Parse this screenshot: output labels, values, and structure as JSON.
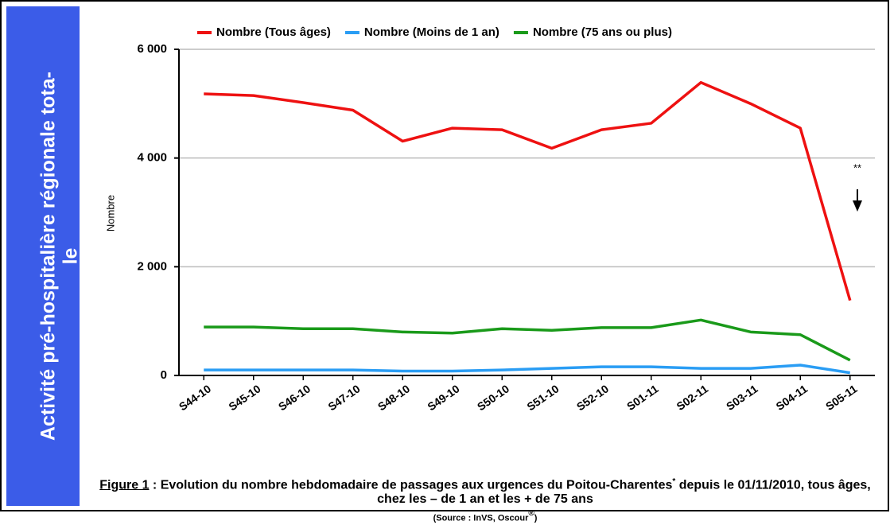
{
  "sidebar": {
    "line1": "Activité pré-hospitalière régionale tota-",
    "line2": "le"
  },
  "caption": {
    "figure": "Figure 1",
    "text1": " : Evolution du nombre hebdomadaire de passages aux urgences du Poitou-Charentes",
    "star": "*",
    "text2": " depuis le 01/11/2010, tous âges, chez les – de 1 an et les  + de 75 ans",
    "source": "(Source : InVS, Oscour",
    "reg": "®",
    "source_end": ")"
  },
  "chart_data": {
    "type": "line",
    "ylabel": "Nombre",
    "annotation": "**",
    "categories": [
      "S44-10",
      "S45-10",
      "S46-10",
      "S47-10",
      "S48-10",
      "S49-10",
      "S50-10",
      "S51-10",
      "S52-10",
      "S01-11",
      "S02-11",
      "S03-11",
      "S04-11",
      "S05-11"
    ],
    "series": [
      {
        "name": "Nombre (Tous âges)",
        "color": "#ee1111",
        "values": [
          5180,
          5150,
          5020,
          4880,
          4310,
          4550,
          4520,
          4180,
          4520,
          4640,
          5390,
          5000,
          4550,
          1380
        ]
      },
      {
        "name": "Nombre (Moins de 1 an)",
        "color": "#2a9df4",
        "values": [
          100,
          100,
          100,
          100,
          80,
          80,
          100,
          130,
          160,
          160,
          130,
          130,
          190,
          50
        ]
      },
      {
        "name": "Nombre (75 ans ou plus)",
        "color": "#1a9a1a",
        "values": [
          890,
          890,
          860,
          860,
          800,
          780,
          860,
          830,
          880,
          880,
          1020,
          800,
          750,
          280
        ]
      }
    ],
    "ylim": [
      0,
      6000
    ],
    "yticks": [
      0,
      {
        "value": 2000,
        "label": "2 000"
      },
      {
        "value": 4000,
        "label": "4 000"
      },
      {
        "value": 6000,
        "label": "6 000"
      }
    ],
    "grid": true
  }
}
